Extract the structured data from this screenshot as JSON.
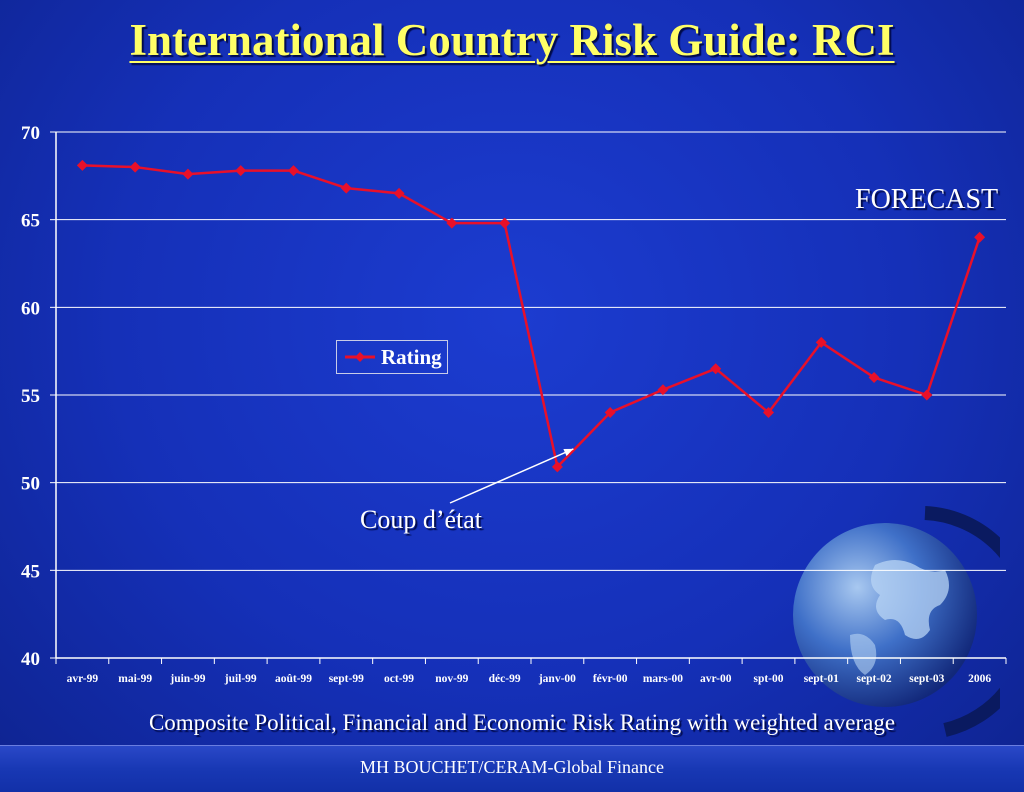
{
  "slide": {
    "title": "International Country Risk Guide: RCI",
    "subtitle": "Composite Political, Financial and Economic Risk Rating with weighted average",
    "footer": "MH BOUCHET/CERAM-Global Finance"
  },
  "annotations": {
    "forecast": "FORECAST",
    "coup": "Coup d’état"
  },
  "colors": {
    "background": "#1530b8",
    "title": "#ffff66",
    "series": "#e8102a",
    "grid": "#ffffff"
  },
  "chart_data": {
    "type": "line",
    "categories": [
      "avr-99",
      "mai-99",
      "juin-99",
      "juil-99",
      "août-99",
      "sept-99",
      "oct-99",
      "nov-99",
      "déc-99",
      "janv-00",
      "févr-00",
      "mars-00",
      "avr-00",
      "spt-00",
      "sept-01",
      "sept-02",
      "sept-03",
      "2006"
    ],
    "series": [
      {
        "name": "Rating",
        "values": [
          68.1,
          68.0,
          67.6,
          67.8,
          67.8,
          66.8,
          66.5,
          64.8,
          64.8,
          50.9,
          54.0,
          55.3,
          56.5,
          54.0,
          58.0,
          56.0,
          55.0,
          64.0
        ]
      }
    ],
    "yticks": [
      40,
      45,
      50,
      55,
      60,
      65,
      70
    ],
    "ylim": [
      40,
      70
    ],
    "grid": true,
    "legend": "center-left"
  }
}
